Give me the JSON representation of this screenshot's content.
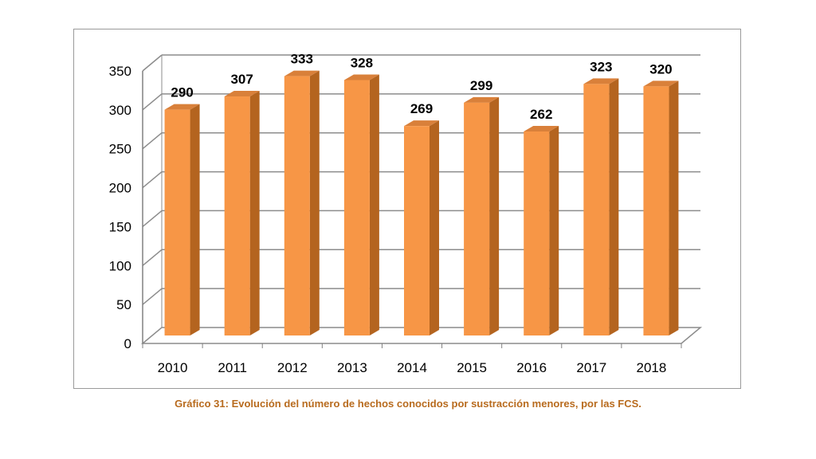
{
  "caption": "Gráfico 31: Evolución del número de hechos conocidos por sustracción menores, por las FCS.",
  "colors": {
    "bar_front": "#f79646",
    "bar_side": "#b4641f",
    "bar_top": "#d9803a",
    "grid": "#8c8c8c",
    "axis": "#808080",
    "caption": "#b86b1e"
  },
  "chart_data": {
    "type": "bar",
    "style": "3d-column",
    "categories": [
      "2010",
      "2011",
      "2012",
      "2013",
      "2014",
      "2015",
      "2016",
      "2017",
      "2018"
    ],
    "values": [
      290,
      307,
      333,
      328,
      269,
      299,
      262,
      323,
      320
    ],
    "data_labels": [
      "290",
      "307",
      "333",
      "328",
      "269",
      "299",
      "262",
      "323",
      "320"
    ],
    "yticks": [
      "0",
      "50",
      "100",
      "150",
      "200",
      "250",
      "300",
      "350"
    ],
    "ylim": [
      0,
      350
    ],
    "grid": true,
    "legend": "none"
  }
}
